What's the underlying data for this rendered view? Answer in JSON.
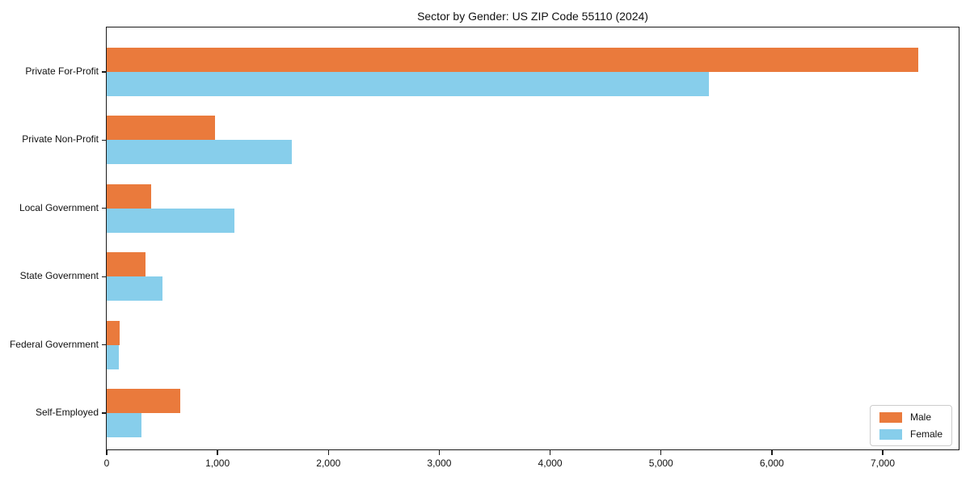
{
  "title": "Sector by Gender: US ZIP Code 55110 (2024)",
  "colors": {
    "male": "#ea7a3c",
    "female": "#87ceeb",
    "spine": "#1a1a1a",
    "legend_border": "#cccccc",
    "background": "#ffffff"
  },
  "legend": {
    "position": "lower right",
    "entries": [
      {
        "label": "Male",
        "color": "#ea7a3c"
      },
      {
        "label": "Female",
        "color": "#87ceeb"
      }
    ]
  },
  "chart_data": {
    "type": "bar",
    "orientation": "horizontal",
    "title": "Sector by Gender: US ZIP Code 55110 (2024)",
    "categories": [
      "Private For-Profit",
      "Private Non-Profit",
      "Local Government",
      "State Government",
      "Federal Government",
      "Self-Employed"
    ],
    "series": [
      {
        "name": "Male",
        "color": "#ea7a3c",
        "values": [
          7320,
          980,
          400,
          350,
          120,
          660
        ]
      },
      {
        "name": "Female",
        "color": "#87ceeb",
        "values": [
          5430,
          1670,
          1150,
          500,
          110,
          310
        ]
      }
    ],
    "xlim": [
      0,
      7700
    ],
    "xticks": [
      0,
      1000,
      2000,
      3000,
      4000,
      5000,
      6000,
      7000
    ],
    "xtick_labels": [
      "0",
      "1,000",
      "2,000",
      "3,000",
      "4,000",
      "5,000",
      "6,000",
      "7,000"
    ],
    "xlabel": "",
    "ylabel": "",
    "grid": false,
    "legend_position": "lower right"
  }
}
